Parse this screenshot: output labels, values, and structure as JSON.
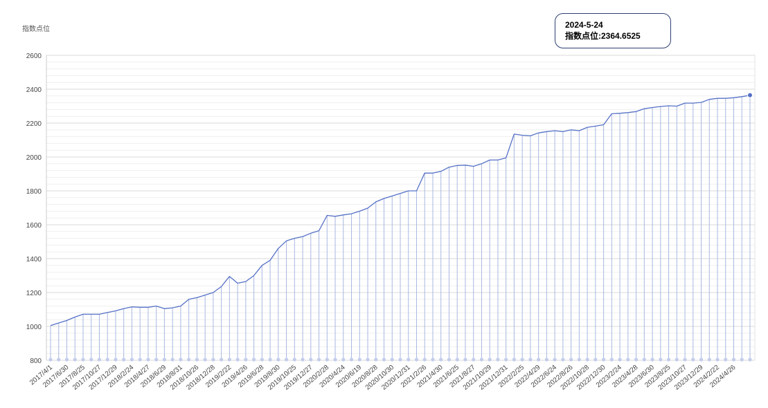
{
  "chart_data": {
    "type": "line",
    "ylabel": "指数点位",
    "ylim": [
      800,
      2600
    ],
    "yticks": [
      800,
      1000,
      1200,
      1400,
      1600,
      1800,
      2000,
      2200,
      2400,
      2600
    ],
    "grid": true,
    "legend": "none",
    "x_tick_labels": [
      "2017/4/1",
      "2017/6/30",
      "2017/8/25",
      "2017/10/27",
      "2017/12/29",
      "2018/2/24",
      "2018/4/27",
      "2018/6/29",
      "2018/8/31",
      "2018/10/26",
      "2018/12/28",
      "2019/2/22",
      "2019/4/26",
      "2019/6/28",
      "2019/8/30",
      "2019/10/25",
      "2019/12/27",
      "2020/2/28",
      "2020/4/24",
      "2020/6/19",
      "2020/8/28",
      "2020/10/30",
      "2020/12/31",
      "2021/2/26",
      "2021/4/30",
      "2021/6/25",
      "2021/8/27",
      "2021/10/29",
      "2021/12/31",
      "2022/2/25",
      "2022/4/29",
      "2022/6/24",
      "2022/8/26",
      "2022/10/28",
      "2022/12/30",
      "2023/2/24",
      "2023/4/28",
      "2023/6/30",
      "2023/8/25",
      "2023/10/27",
      "2023/12/29",
      "2024/2/22",
      "2024/4/26"
    ],
    "series": [
      {
        "values": [
          1005,
          1020,
          1035,
          1055,
          1072,
          1072,
          1072,
          1082,
          1092,
          1105,
          1115,
          1113,
          1113,
          1120,
          1105,
          1110,
          1120,
          1160,
          1170,
          1185,
          1200,
          1235,
          1295,
          1255,
          1265,
          1300,
          1360,
          1390,
          1460,
          1505,
          1520,
          1530,
          1550,
          1565,
          1655,
          1650,
          1658,
          1665,
          1680,
          1698,
          1735,
          1755,
          1770,
          1785,
          1800,
          1800,
          1905,
          1905,
          1915,
          1940,
          1950,
          1952,
          1945,
          1960,
          1982,
          1982,
          1995,
          2135,
          2128,
          2125,
          2142,
          2150,
          2155,
          2150,
          2160,
          2155,
          2175,
          2182,
          2190,
          2255,
          2258,
          2262,
          2268,
          2285,
          2292,
          2298,
          2302,
          2300,
          2318,
          2318,
          2322,
          2340,
          2346,
          2346,
          2350,
          2356,
          2364.6525
        ]
      }
    ],
    "highlight": {
      "date": "2024-5-24",
      "value": "2364.6525"
    },
    "colors": {
      "line": "#5470c6",
      "drop_lines": "#aab8e2",
      "grid": "#e6e6e6",
      "point": "#5470c6"
    }
  },
  "tooltip": {
    "title": "2024-5-24",
    "text": "指数点位:2364.6525"
  }
}
